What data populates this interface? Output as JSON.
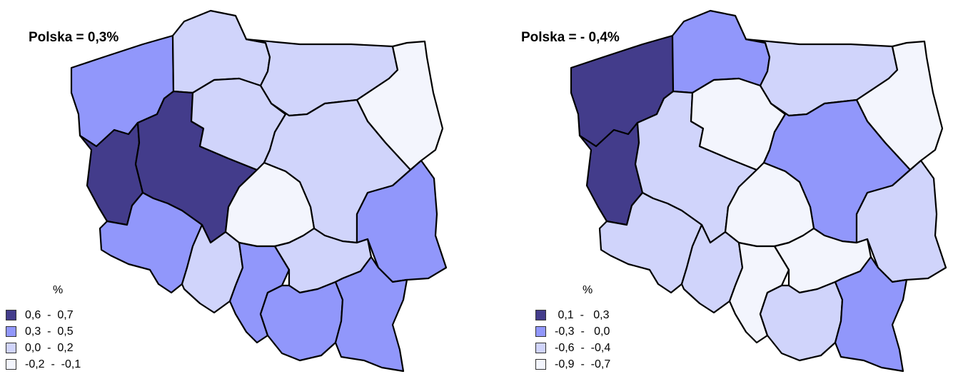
{
  "maps": [
    {
      "title": "Polska = 0,3%",
      "legend": {
        "unit": "%",
        "items": [
          {
            "label": "0,6  -  0,7",
            "class": 3
          },
          {
            "label": "0,3  -  0,5",
            "class": 2
          },
          {
            "label": "0,0  -  0,2",
            "class": 1
          },
          {
            "label": "-0,2  -  -0,1",
            "class": 0
          }
        ]
      },
      "regions": {
        "zachodniopomorskie": 2,
        "pomorskie": 1,
        "warminsko-mazurskie": 1,
        "podlaskie": 0,
        "lubuskie": 3,
        "wielkopolskie": 3,
        "kujawsko-pomorskie": 1,
        "mazowieckie": 1,
        "lodzkie": 0,
        "lubelskie": 2,
        "dolnoslaskie": 2,
        "opolskie": 1,
        "slaskie": 2,
        "swietokrzyskie": 1,
        "malopolskie": 2,
        "podkarpackie": 2
      }
    },
    {
      "title": "Polska = - 0,4%",
      "legend": {
        "unit": "%",
        "items": [
          {
            "label": " 0,1  -   0,3",
            "class": 3
          },
          {
            "label": "-0,3  -   0,0",
            "class": 2
          },
          {
            "label": "-0,6  -  -0,4",
            "class": 1
          },
          {
            "label": "-0,9  -  -0,7",
            "class": 0
          }
        ]
      },
      "regions": {
        "zachodniopomorskie": 3,
        "pomorskie": 2,
        "warminsko-mazurskie": 1,
        "podlaskie": 0,
        "lubuskie": 3,
        "wielkopolskie": 1,
        "kujawsko-pomorskie": 0,
        "mazowieckie": 2,
        "lodzkie": 0,
        "lubelskie": 1,
        "dolnoslaskie": 1,
        "opolskie": 1,
        "slaskie": 0,
        "swietokrzyskie": 0,
        "malopolskie": 1,
        "podkarpackie": 2
      }
    }
  ],
  "colors": {
    "class_0": "#f3f5fd",
    "class_1": "#d0d4fb",
    "class_2": "#9197fb",
    "class_3": "#433c8b",
    "border": "#000000"
  }
}
